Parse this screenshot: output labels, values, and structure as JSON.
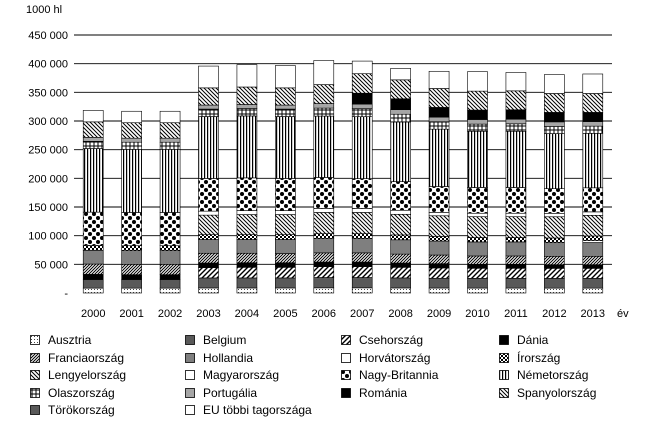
{
  "chart_data": {
    "type": "bar",
    "stacked": true,
    "unit_label": "1000 hl",
    "xunit_label": "év",
    "yticks": [
      "450 000",
      "400 000",
      "350 000",
      "300 000",
      "250 000",
      "200 000",
      "150 000",
      "100 000",
      "50 000",
      "-"
    ],
    "ylim": [
      0,
      450000
    ],
    "grid": true,
    "legend_position": "bottom",
    "categories": [
      "2000",
      "2001",
      "2002",
      "2003",
      "2004",
      "2005",
      "2006",
      "2007",
      "2008",
      "2009",
      "2010",
      "2011",
      "2012",
      "2013"
    ],
    "series": [
      {
        "name": "Ausztria",
        "pattern": "dots",
        "values": [
          8500,
          8500,
          8500,
          8800,
          8800,
          8800,
          9000,
          9000,
          8800,
          8700,
          8600,
          8600,
          8500,
          8500
        ]
      },
      {
        "name": "Belgium",
        "pattern": "dgray",
        "values": [
          15000,
          15000,
          15000,
          17500,
          17500,
          17500,
          18000,
          18000,
          17500,
          17000,
          17000,
          17000,
          17000,
          17000
        ]
      },
      {
        "name": "Csehország",
        "pattern": "diag-light",
        "values": [
          0,
          0,
          0,
          18000,
          18500,
          18500,
          19000,
          19000,
          18500,
          18000,
          17500,
          17500,
          17500,
          17500
        ]
      },
      {
        "name": "Dánia",
        "pattern": "black",
        "values": [
          9000,
          8500,
          8500,
          8000,
          8000,
          8000,
          8000,
          8000,
          7500,
          7500,
          7000,
          7000,
          6500,
          6500
        ]
      },
      {
        "name": "Franciaország",
        "pattern": "diag-dense",
        "values": [
          18000,
          18000,
          18000,
          17000,
          16500,
          16000,
          16000,
          16000,
          15500,
          15000,
          14500,
          14500,
          14500,
          14500
        ]
      },
      {
        "name": "Hollandia",
        "pattern": "mgray",
        "values": [
          24000,
          24000,
          24000,
          24000,
          24000,
          24500,
          25000,
          25000,
          25000,
          24500,
          24500,
          24500,
          24000,
          24000
        ]
      },
      {
        "name": "Horvátország",
        "pattern": "white",
        "values": [
          0,
          0,
          0,
          0,
          0,
          0,
          0,
          0,
          0,
          0,
          0,
          0,
          0,
          3500
        ]
      },
      {
        "name": "Írország",
        "pattern": "checker-sm",
        "values": [
          8500,
          8500,
          8500,
          8500,
          8500,
          8500,
          8500,
          8500,
          8500,
          8000,
          8000,
          8000,
          8000,
          8000
        ]
      },
      {
        "name": "Lengyelország",
        "pattern": "diag-rev",
        "values": [
          0,
          0,
          0,
          34000,
          35000,
          35000,
          37000,
          37000,
          36000,
          36000,
          36000,
          36000,
          37000,
          36000
        ]
      },
      {
        "name": "Magyarország",
        "pattern": "white",
        "values": [
          0,
          0,
          0,
          7000,
          7000,
          7000,
          7000,
          7000,
          7000,
          6000,
          6000,
          6000,
          6000,
          6000
        ]
      },
      {
        "name": "Nagy-Britannia",
        "pattern": "checker-lg",
        "values": [
          58000,
          58000,
          58000,
          57000,
          57000,
          56000,
          54000,
          52000,
          50000,
          45000,
          45000,
          45000,
          43000,
          42000
        ]
      },
      {
        "name": "Németország",
        "pattern": "vlines",
        "values": [
          111000,
          110000,
          110000,
          108000,
          108000,
          108000,
          107000,
          108000,
          104000,
          100000,
          98000,
          98000,
          96000,
          95000
        ]
      },
      {
        "name": "Olaszország",
        "pattern": "grid",
        "values": [
          12500,
          12500,
          12500,
          13000,
          13000,
          13000,
          14000,
          14000,
          13500,
          13000,
          12500,
          13000,
          12500,
          12500
        ]
      },
      {
        "name": "Portugália",
        "pattern": "lgray",
        "values": [
          7000,
          7000,
          7000,
          7000,
          7000,
          7000,
          8000,
          8000,
          8000,
          8000,
          8000,
          8000,
          8000,
          8000
        ]
      },
      {
        "name": "Románia",
        "pattern": "black",
        "values": [
          0,
          0,
          0,
          0,
          0,
          0,
          0,
          19000,
          19000,
          17000,
          16500,
          16500,
          16500,
          16000
        ]
      },
      {
        "name": "Spanyolország",
        "pattern": "diag-rev",
        "values": [
          27000,
          27000,
          27000,
          30000,
          30500,
          30000,
          33000,
          34000,
          33000,
          33000,
          33000,
          33000,
          33000,
          33000
        ]
      },
      {
        "name": "Törökország",
        "pattern": "dgray",
        "values": [
          0,
          0,
          0,
          0,
          0,
          0,
          0,
          0,
          0,
          0,
          0,
          0,
          0,
          0
        ]
      },
      {
        "name": "EU többi tagországa",
        "pattern": "white",
        "values": [
          20000,
          20000,
          20000,
          38000,
          39000,
          39000,
          42000,
          22000,
          20000,
          30000,
          34000,
          32000,
          33000,
          34000
        ]
      }
    ]
  }
}
